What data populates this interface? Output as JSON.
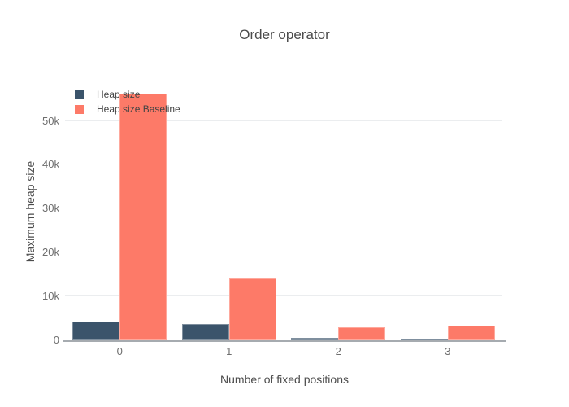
{
  "chart_data": {
    "type": "bar",
    "title": "Order operator",
    "xlabel": "Number of fixed positions",
    "ylabel": "Maximum heap size",
    "categories": [
      "0",
      "1",
      "2",
      "3"
    ],
    "series": [
      {
        "name": "Heap size",
        "color": "#3b546b",
        "values": [
          4200,
          3750,
          600,
          450
        ]
      },
      {
        "name": "Heap size Baseline",
        "color": "#fd7a68",
        "values": [
          56200,
          14100,
          2900,
          3250
        ]
      }
    ],
    "ylim": [
      0,
      59000
    ],
    "yticks": [
      {
        "v": 0,
        "label": "0"
      },
      {
        "v": 10000,
        "label": "10k"
      },
      {
        "v": 20000,
        "label": "20k"
      },
      {
        "v": 30000,
        "label": "30k"
      },
      {
        "v": 40000,
        "label": "40k"
      },
      {
        "v": 50000,
        "label": "50k"
      }
    ],
    "grid": true,
    "legend_position": "inside-top-left",
    "colors": {
      "background": "#ffffff",
      "gridline": "#ebedef",
      "axis_line": "#a6abb0",
      "title_text": "#4b4b4b",
      "tick_text": "#6e6e6e"
    }
  }
}
